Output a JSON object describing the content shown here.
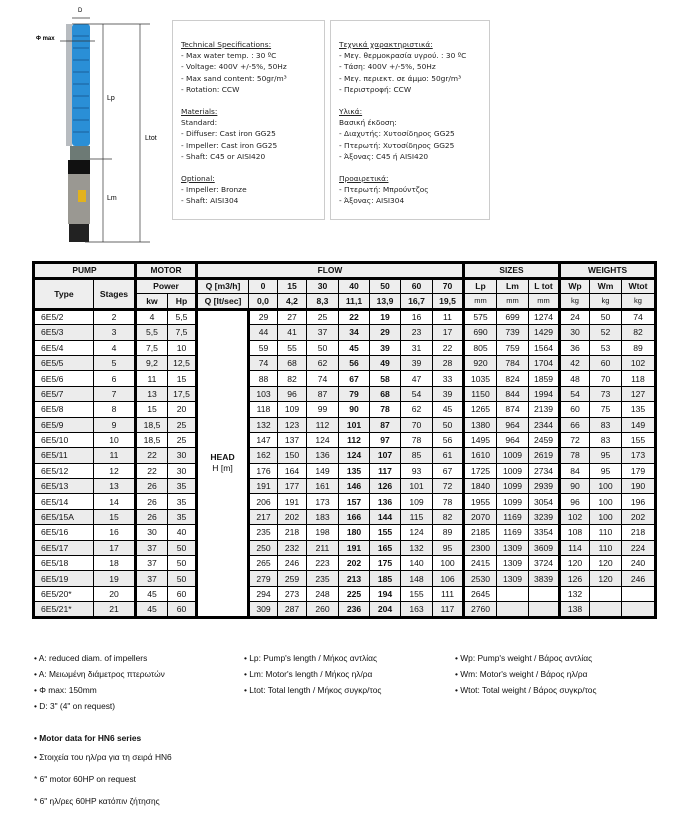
{
  "figure": {
    "d_label": "D",
    "phi_label": "Φ max",
    "lp_label": "Lp",
    "lm_label": "Lm",
    "ltot_label": "Ltot",
    "pump_color": "#2a8fd6"
  },
  "spec_en": {
    "title": "Technical Specifications:",
    "lines": [
      "- Max water temp. : 30 ºC",
      "- Voltage: 400V +/-5%, 50Hz",
      "- Max sand content: 50gr/m³",
      "- Rotation: CCW"
    ],
    "materials_title": "Materials:",
    "standard": "Standard:",
    "materials": [
      "- Diffuser: Cast iron GG25",
      "- Impeller: Cast iron GG25",
      "- Shaft: C45 or AISI420"
    ],
    "optional_title": "Optional:",
    "optional": [
      "- Impeller: Bronze",
      "- Shaft: AISI304"
    ]
  },
  "spec_gr": {
    "title": "Τεχνικά χαρακτηριστικά:",
    "lines": [
      "- Μεγ. θερμοκρασία υγρού. : 30 ºC",
      "- Τάση: 400V +/-5%, 50Hz",
      "- Μεγ. περιεκτ. σε άμμο: 50gr/m³",
      "- Περιστροφή: CCW"
    ],
    "materials_title": "Υλικά:",
    "standard": "Βασική έκδοση:",
    "materials": [
      "- Διαχυτής: Χυτοσίδηρος GG25",
      "- Πτερωτή: Χυτοσίδηρος GG25",
      "- Άξονας: C45 ή AISI420"
    ],
    "optional_title": "Προαιρετικά:",
    "optional": [
      "- Πτερωτή: Μπρούντζος",
      "- Άξονας: AISI304"
    ]
  },
  "table": {
    "groups": {
      "pump": "PUMP",
      "motor": "MOTOR",
      "flow": "FLOW",
      "sizes": "SIZES",
      "weights": "WEIGHTS"
    },
    "type": "Type",
    "stages": "Stages",
    "power": "Power",
    "kw": "kw",
    "hp": "Hp",
    "q_m3h": "Q [m3/h]",
    "q_lts": "Q [lt/sec]",
    "flow_m3h": [
      "0",
      "15",
      "30",
      "40",
      "50",
      "60",
      "70"
    ],
    "flow_lts": [
      "0,0",
      "4,2",
      "8,3",
      "11,1",
      "13,9",
      "16,7",
      "19,5"
    ],
    "size_cols": [
      "Lp",
      "Lm",
      "L tot"
    ],
    "size_units": [
      "mm",
      "mm",
      "mm"
    ],
    "weight_cols": [
      "Wp",
      "Wm",
      "Wtot"
    ],
    "weight_units": [
      "kg",
      "kg",
      "kg"
    ],
    "head_label": "HEAD",
    "head_unit": "H [m]",
    "rows": [
      [
        "6E5/2",
        "2",
        "4",
        "5,5",
        "29",
        "27",
        "25",
        "22",
        "19",
        "16",
        "11",
        "575",
        "699",
        "1274",
        "24",
        "50",
        "74"
      ],
      [
        "6E5/3",
        "3",
        "5,5",
        "7,5",
        "44",
        "41",
        "37",
        "34",
        "29",
        "23",
        "17",
        "690",
        "739",
        "1429",
        "30",
        "52",
        "82"
      ],
      [
        "6E5/4",
        "4",
        "7,5",
        "10",
        "59",
        "55",
        "50",
        "45",
        "39",
        "31",
        "22",
        "805",
        "759",
        "1564",
        "36",
        "53",
        "89"
      ],
      [
        "6E5/5",
        "5",
        "9,2",
        "12,5",
        "74",
        "68",
        "62",
        "56",
        "49",
        "39",
        "28",
        "920",
        "784",
        "1704",
        "42",
        "60",
        "102"
      ],
      [
        "6E5/6",
        "6",
        "11",
        "15",
        "88",
        "82",
        "74",
        "67",
        "58",
        "47",
        "33",
        "1035",
        "824",
        "1859",
        "48",
        "70",
        "118"
      ],
      [
        "6E5/7",
        "7",
        "13",
        "17,5",
        "103",
        "96",
        "87",
        "79",
        "68",
        "54",
        "39",
        "1150",
        "844",
        "1994",
        "54",
        "73",
        "127"
      ],
      [
        "6E5/8",
        "8",
        "15",
        "20",
        "118",
        "109",
        "99",
        "90",
        "78",
        "62",
        "45",
        "1265",
        "874",
        "2139",
        "60",
        "75",
        "135"
      ],
      [
        "6E5/9",
        "9",
        "18,5",
        "25",
        "132",
        "123",
        "112",
        "101",
        "87",
        "70",
        "50",
        "1380",
        "964",
        "2344",
        "66",
        "83",
        "149"
      ],
      [
        "6E5/10",
        "10",
        "18,5",
        "25",
        "147",
        "137",
        "124",
        "112",
        "97",
        "78",
        "56",
        "1495",
        "964",
        "2459",
        "72",
        "83",
        "155"
      ],
      [
        "6E5/11",
        "11",
        "22",
        "30",
        "162",
        "150",
        "136",
        "124",
        "107",
        "85",
        "61",
        "1610",
        "1009",
        "2619",
        "78",
        "95",
        "173"
      ],
      [
        "6E5/12",
        "12",
        "22",
        "30",
        "176",
        "164",
        "149",
        "135",
        "117",
        "93",
        "67",
        "1725",
        "1009",
        "2734",
        "84",
        "95",
        "179"
      ],
      [
        "6E5/13",
        "13",
        "26",
        "35",
        "191",
        "177",
        "161",
        "146",
        "126",
        "101",
        "72",
        "1840",
        "1099",
        "2939",
        "90",
        "100",
        "190"
      ],
      [
        "6E5/14",
        "14",
        "26",
        "35",
        "206",
        "191",
        "173",
        "157",
        "136",
        "109",
        "78",
        "1955",
        "1099",
        "3054",
        "96",
        "100",
        "196"
      ],
      [
        "6E5/15A",
        "15",
        "26",
        "35",
        "217",
        "202",
        "183",
        "166",
        "144",
        "115",
        "82",
        "2070",
        "1169",
        "3239",
        "102",
        "100",
        "202"
      ],
      [
        "6E5/16",
        "16",
        "30",
        "40",
        "235",
        "218",
        "198",
        "180",
        "155",
        "124",
        "89",
        "2185",
        "1169",
        "3354",
        "108",
        "110",
        "218"
      ],
      [
        "6E5/17",
        "17",
        "37",
        "50",
        "250",
        "232",
        "211",
        "191",
        "165",
        "132",
        "95",
        "2300",
        "1309",
        "3609",
        "114",
        "110",
        "224"
      ],
      [
        "6E5/18",
        "18",
        "37",
        "50",
        "265",
        "246",
        "223",
        "202",
        "175",
        "140",
        "100",
        "2415",
        "1309",
        "3724",
        "120",
        "120",
        "240"
      ],
      [
        "6E5/19",
        "19",
        "37",
        "50",
        "279",
        "259",
        "235",
        "213",
        "185",
        "148",
        "106",
        "2530",
        "1309",
        "3839",
        "126",
        "120",
        "246"
      ],
      [
        "6E5/20*",
        "20",
        "45",
        "60",
        "294",
        "273",
        "248",
        "225",
        "194",
        "155",
        "111",
        "2645",
        "",
        "",
        "132",
        "",
        ""
      ],
      [
        "6E5/21*",
        "21",
        "45",
        "60",
        "309",
        "287",
        "260",
        "236",
        "204",
        "163",
        "117",
        "2760",
        "",
        "",
        "138",
        "",
        ""
      ]
    ]
  },
  "notes": {
    "col1": [
      "• A: reduced diam. of impellers",
      "• A: Μειωμένη διάμετρος πτερωτών",
      "• Φ max: 150mm",
      "• D: 3\" (4\" on request)"
    ],
    "col2": [
      "• Lp: Pump's length / Μήκος αντλίας",
      "• Lm: Motor's length / Μήκος ηλ/ρα",
      "• Ltot: Total length / Μήκος συγκρ/τος"
    ],
    "col3": [
      "• Wp: Pump's weight / Βάρος αντλίας",
      "• Wm: Motor's weight / Βάρος ηλ/ρα",
      "• Wtot: Total weight / Βάρος συγκρ/τος"
    ],
    "motor_en": "• Motor data for HN6 series",
    "motor_gr": "• Στοιχεία του ηλ/ρα για τη σειρά HN6",
    "req_en": "* 6\" motor 60HP on request",
    "req_gr": "* 6\" ηλ/ρες 60HP κατόπιν ζήτησης"
  }
}
